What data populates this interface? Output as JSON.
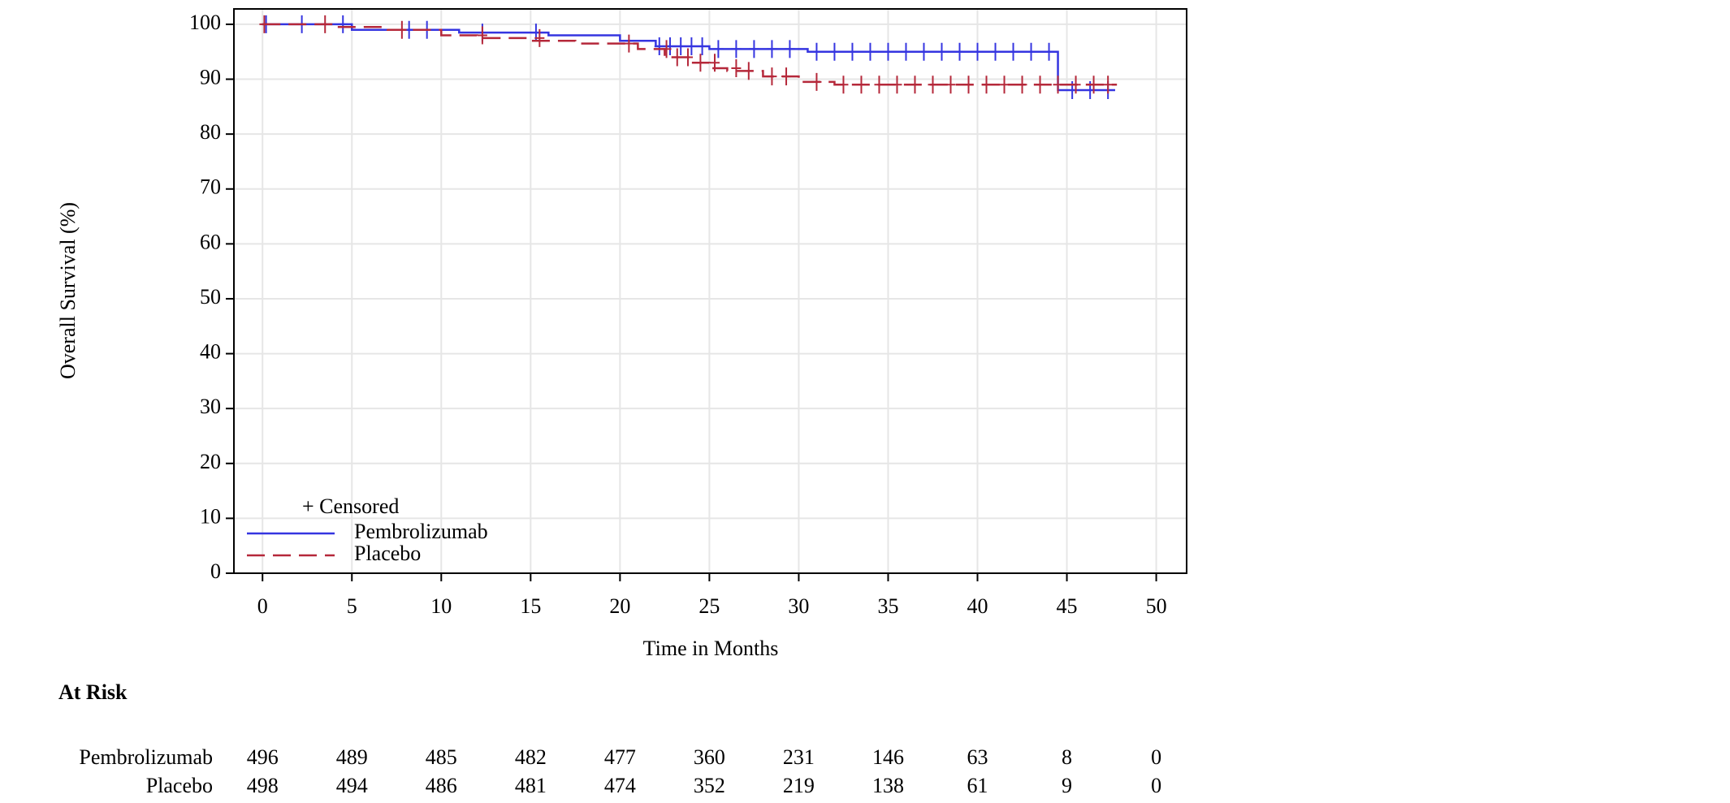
{
  "chart_data": {
    "type": "step",
    "y_label": "Overall Survival (%)",
    "x_label": "Time in Months",
    "xlim": [
      -1.6,
      51.7
    ],
    "ylim": [
      0,
      102.8
    ],
    "xticks": [
      0,
      5,
      10,
      15,
      20,
      25,
      30,
      35,
      40,
      45,
      50
    ],
    "yticks": [
      0,
      10,
      20,
      30,
      40,
      50,
      60,
      70,
      80,
      90,
      100
    ],
    "grid": true,
    "legend_position": "lower left",
    "censor_legend": "+ Censored",
    "series": [
      {
        "name": "Pembrolizumab",
        "color": "#3535e0",
        "dash": false,
        "x": [
          0,
          5,
          5,
          11,
          11,
          16,
          16,
          20,
          20,
          22,
          22,
          25,
          25,
          30.5,
          30.5,
          44.5,
          44.5,
          47.7
        ],
        "values": [
          100,
          100,
          99,
          99,
          98.5,
          98.5,
          98,
          98,
          97,
          97,
          96,
          96,
          95.5,
          95.5,
          95,
          95,
          88,
          88
        ],
        "censored_x": [
          0.2,
          2.2,
          4.5,
          8.2,
          9.2,
          12.3,
          15.3,
          22.2,
          22.8,
          23.4,
          24,
          24.6,
          25.5,
          26.5,
          27.5,
          28.5,
          29.5,
          31,
          32,
          33,
          34,
          35,
          36,
          37,
          38,
          39,
          40,
          41,
          42,
          43,
          44,
          45.3,
          46.3,
          47.3
        ],
        "censored_values": [
          100,
          100,
          100,
          99,
          99,
          98.5,
          98.5,
          96,
          96,
          96,
          96,
          96,
          95.5,
          95.5,
          95.5,
          95.5,
          95.5,
          95,
          95,
          95,
          95,
          95,
          95,
          95,
          95,
          95,
          95,
          95,
          95,
          95,
          95,
          88,
          88,
          88
        ]
      },
      {
        "name": "Placebo",
        "color": "#b5283a",
        "dash": true,
        "x": [
          0,
          4,
          4,
          7,
          7,
          10,
          10,
          12,
          12,
          15,
          15,
          17.5,
          17.5,
          21,
          21,
          22.5,
          22.5,
          24,
          24,
          25,
          25,
          26,
          26,
          28,
          28,
          30,
          30,
          32,
          32,
          47.8
        ],
        "values": [
          100,
          100,
          99.5,
          99.5,
          99,
          99,
          98,
          98,
          97.5,
          97.5,
          97,
          97,
          96.5,
          96.5,
          95.5,
          95.5,
          94,
          94,
          93,
          93,
          92,
          92,
          91.5,
          91.5,
          90.5,
          90.5,
          89.5,
          89.5,
          89,
          89
        ],
        "censored_x": [
          0.1,
          3.5,
          7.8,
          12.3,
          15.5,
          20.5,
          22.6,
          23.2,
          23.8,
          24.5,
          25.3,
          26.5,
          27.2,
          28.5,
          29.3,
          31,
          32.5,
          33.5,
          34.5,
          35.5,
          36.5,
          37.5,
          38.5,
          39.5,
          40.5,
          41.5,
          42.5,
          43.5,
          44.5,
          45.5,
          46.5,
          47.3
        ],
        "censored_values": [
          100,
          100,
          99,
          98,
          97.5,
          96.5,
          95.5,
          94,
          94,
          93,
          93,
          92,
          91.5,
          90.5,
          90.5,
          89.5,
          89,
          89,
          89,
          89,
          89,
          89,
          89,
          89,
          89,
          89,
          89,
          89,
          89,
          89,
          89,
          89
        ]
      }
    ]
  },
  "at_risk": {
    "title": "At Risk",
    "rows": [
      {
        "name": "Pembrolizumab",
        "values": [
          "496",
          "489",
          "485",
          "482",
          "477",
          "360",
          "231",
          "146",
          "63",
          "8",
          "0"
        ]
      },
      {
        "name": "Placebo",
        "values": [
          "498",
          "494",
          "486",
          "481",
          "474",
          "352",
          "219",
          "138",
          "61",
          "9",
          "0"
        ]
      }
    ]
  }
}
